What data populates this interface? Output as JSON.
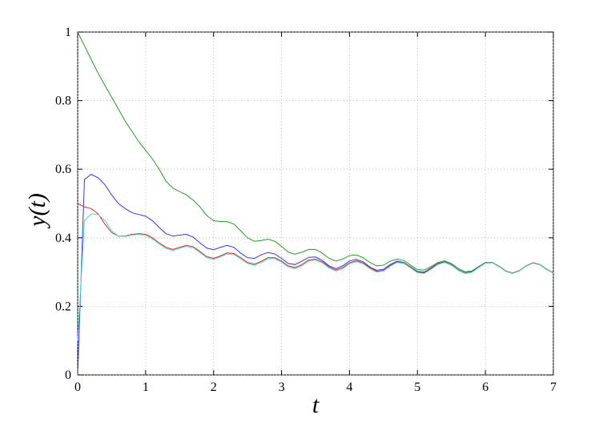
{
  "chart_data": {
    "type": "line",
    "x_label": "t",
    "y_label": "y(t)",
    "x": [
      0,
      0.1,
      0.2,
      0.3,
      0.4,
      0.5,
      0.6,
      0.7,
      0.8,
      0.9,
      1,
      1.1,
      1.2,
      1.3,
      1.4,
      1.5,
      1.6,
      1.7,
      1.8,
      1.9,
      2,
      2.1,
      2.2,
      2.3,
      2.4,
      2.5,
      2.6,
      2.7,
      2.8,
      2.9,
      3,
      3.1,
      3.2,
      3.3,
      3.4,
      3.5,
      3.6,
      3.7,
      3.8,
      3.9,
      4,
      4.1,
      4.2,
      4.3,
      4.4,
      4.5,
      4.6,
      4.7,
      4.8,
      4.9,
      5,
      5.1,
      5.2,
      5.3,
      5.4,
      5.5,
      5.6,
      5.7,
      5.8,
      5.9,
      6,
      6.1,
      6.2,
      6.3,
      6.4,
      6.5,
      6.6,
      6.7,
      6.8,
      6.9,
      7
    ],
    "series": [
      {
        "color": "#1fa01f",
        "values": [
          1,
          0.96,
          0.92,
          0.88,
          0.845,
          0.81,
          0.775,
          0.74,
          0.71,
          0.68,
          0.655,
          0.63,
          0.6,
          0.565,
          0.545,
          0.535,
          0.525,
          0.51,
          0.49,
          0.465,
          0.45,
          0.447,
          0.447,
          0.44,
          0.42,
          0.4,
          0.39,
          0.392,
          0.396,
          0.39,
          0.375,
          0.358,
          0.352,
          0.358,
          0.366,
          0.366,
          0.355,
          0.34,
          0.332,
          0.338,
          0.348,
          0.35,
          0.342,
          0.328,
          0.318,
          0.32,
          0.332,
          0.338,
          0.334,
          0.32,
          0.307,
          0.306,
          0.316,
          0.328,
          0.333,
          0.325,
          0.311,
          0.301,
          0.303,
          0.316,
          0.328,
          0.328,
          0.317,
          0.303,
          0.297,
          0.304,
          0.318,
          0.327,
          0.322,
          0.308,
          0.298
        ]
      },
      {
        "color": "#3535f0",
        "values": [
          0,
          0.57,
          0.585,
          0.575,
          0.555,
          0.525,
          0.5,
          0.485,
          0.473,
          0.468,
          0.463,
          0.45,
          0.43,
          0.412,
          0.405,
          0.408,
          0.41,
          0.402,
          0.385,
          0.37,
          0.365,
          0.372,
          0.378,
          0.372,
          0.355,
          0.342,
          0.34,
          0.35,
          0.357,
          0.353,
          0.34,
          0.325,
          0.322,
          0.332,
          0.343,
          0.344,
          0.334,
          0.318,
          0.31,
          0.318,
          0.332,
          0.337,
          0.33,
          0.315,
          0.305,
          0.308,
          0.322,
          0.332,
          0.328,
          0.315,
          0.302,
          0.3,
          0.312,
          0.325,
          0.33,
          0.322,
          0.307,
          0.298,
          0.301,
          0.315,
          0.327,
          0.328,
          0.317,
          0.303,
          0.297,
          0.304,
          0.318,
          0.327,
          0.322,
          0.308,
          0.298
        ]
      },
      {
        "color": "#e02828",
        "values": [
          0.5,
          0.49,
          0.485,
          0.47,
          0.44,
          0.415,
          0.405,
          0.405,
          0.41,
          0.412,
          0.41,
          0.4,
          0.385,
          0.372,
          0.366,
          0.372,
          0.378,
          0.374,
          0.36,
          0.345,
          0.34,
          0.347,
          0.356,
          0.354,
          0.342,
          0.328,
          0.323,
          0.331,
          0.342,
          0.342,
          0.332,
          0.318,
          0.313,
          0.322,
          0.335,
          0.338,
          0.33,
          0.315,
          0.306,
          0.313,
          0.327,
          0.333,
          0.327,
          0.313,
          0.302,
          0.305,
          0.319,
          0.33,
          0.327,
          0.314,
          0.3,
          0.298,
          0.31,
          0.324,
          0.329,
          0.321,
          0.306,
          0.297,
          0.3,
          0.314,
          0.327,
          0.328,
          0.317,
          0.303,
          0.297,
          0.304,
          0.318,
          0.327,
          0.322,
          0.308,
          0.298
        ]
      },
      {
        "color": "#40e0c0",
        "values": [
          0.1,
          0.45,
          0.47,
          0.468,
          0.45,
          0.42,
          0.405,
          0.404,
          0.408,
          0.41,
          0.407,
          0.397,
          0.382,
          0.369,
          0.363,
          0.369,
          0.375,
          0.371,
          0.357,
          0.342,
          0.337,
          0.344,
          0.353,
          0.351,
          0.339,
          0.325,
          0.32,
          0.328,
          0.339,
          0.339,
          0.329,
          0.315,
          0.31,
          0.319,
          0.332,
          0.335,
          0.327,
          0.312,
          0.303,
          0.31,
          0.324,
          0.33,
          0.324,
          0.31,
          0.3,
          0.303,
          0.317,
          0.328,
          0.325,
          0.312,
          0.298,
          0.296,
          0.308,
          0.322,
          0.328,
          0.32,
          0.305,
          0.296,
          0.299,
          0.313,
          0.326,
          0.327,
          0.316,
          0.302,
          0.296,
          0.303,
          0.317,
          0.326,
          0.321,
          0.307,
          0.297
        ]
      }
    ],
    "xlim": [
      0,
      7
    ],
    "ylim": [
      0,
      1
    ],
    "xticks": [
      0,
      1,
      2,
      3,
      4,
      5,
      6,
      7
    ],
    "yticks": [
      0,
      0.2,
      0.4,
      0.6,
      0.8,
      1
    ],
    "grid": true
  }
}
